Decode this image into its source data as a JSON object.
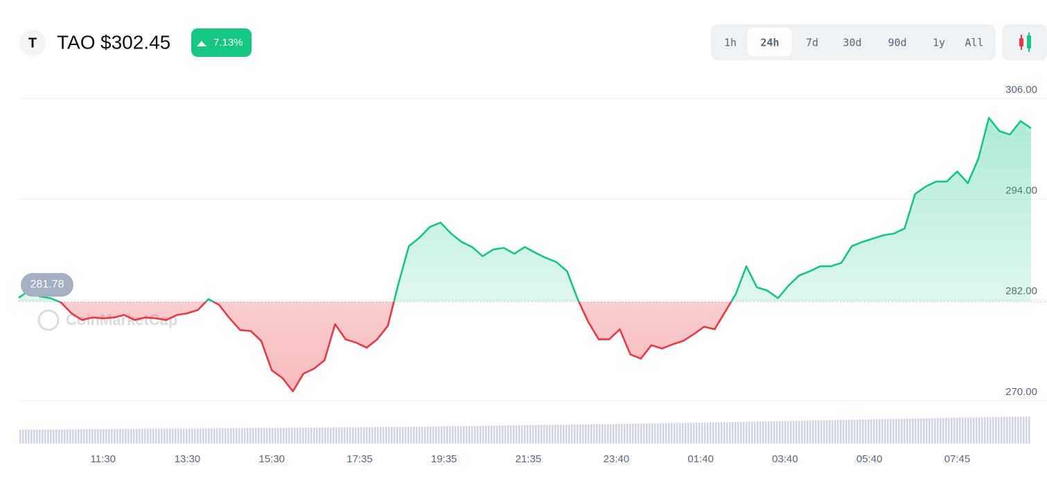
{
  "header": {
    "logo": "T",
    "symbol": "TAO",
    "price": "$302.45",
    "change": "7.13%"
  },
  "ranges": [
    "1h",
    "24h",
    "7d",
    "30d",
    "90d",
    "1y",
    "All"
  ],
  "selected_range": "24h",
  "chart_data": {
    "type": "line",
    "watermark": "CoinMarketCap",
    "x": [
      0,
      1,
      2,
      3,
      4,
      5,
      6,
      7,
      8,
      9,
      10,
      11,
      12,
      13,
      14,
      15,
      16,
      17,
      18,
      19,
      20,
      21,
      22,
      23,
      24,
      25,
      26,
      27,
      28,
      29,
      30,
      31,
      32,
      33,
      34,
      35,
      36,
      37,
      38,
      39,
      40,
      41,
      42,
      43,
      44,
      45,
      46,
      47,
      48,
      49,
      50,
      51,
      52,
      53,
      54,
      55,
      56,
      57,
      58,
      59,
      60,
      61,
      62,
      63,
      64,
      65,
      66,
      67,
      68,
      69,
      70,
      71,
      72,
      73,
      74,
      75,
      76,
      77,
      78,
      79,
      80,
      81,
      82,
      83,
      84,
      85,
      86,
      87,
      88,
      89,
      90,
      91,
      92,
      93,
      94,
      95,
      96
    ],
    "values": [
      282.25,
      283.1,
      282.4,
      282.2,
      281.7,
      280.4,
      279.6,
      279.9,
      279.8,
      279.9,
      280.2,
      279.6,
      279.9,
      279.8,
      279.6,
      280.2,
      280.4,
      280.8,
      282.1,
      281.4,
      279.8,
      278.4,
      278.3,
      277.1,
      273.6,
      272.7,
      271.1,
      273.2,
      273.8,
      274.8,
      279.1,
      277.3,
      276.9,
      276.3,
      277.3,
      278.9,
      283.9,
      288.4,
      289.4,
      290.7,
      291.2,
      289.9,
      288.9,
      288.3,
      287.2,
      288.0,
      288.2,
      287.5,
      288.3,
      287.6,
      287.0,
      286.5,
      285.4,
      282.1,
      279.4,
      277.3,
      277.3,
      278.5,
      275.5,
      275.0,
      276.6,
      276.2,
      276.7,
      277.1,
      277.9,
      278.8,
      278.5,
      280.6,
      282.7,
      286.0,
      283.5,
      283.1,
      282.2,
      283.7,
      284.9,
      285.4,
      286.0,
      286.0,
      286.4,
      288.4,
      288.9,
      289.3,
      289.7,
      289.9,
      290.5,
      294.6,
      295.5,
      296.1,
      296.1,
      297.3,
      295.9,
      298.8,
      303.7,
      302.1,
      301.7,
      303.3,
      302.45
    ],
    "baseline": {
      "value": 281.78,
      "label": "281.78"
    },
    "up_color": "#16c784",
    "down_color": "#ea3943",
    "xlim": [
      0,
      96
    ],
    "xticks": [
      {
        "value": 8,
        "label": "11:30"
      },
      {
        "value": 16,
        "label": "13:30"
      },
      {
        "value": 24,
        "label": "15:30"
      },
      {
        "value": 32.33,
        "label": "17:35"
      },
      {
        "value": 40.33,
        "label": "19:35"
      },
      {
        "value": 48.33,
        "label": "21:35"
      },
      {
        "value": 56.67,
        "label": "23:40"
      },
      {
        "value": 64.67,
        "label": "01:40"
      },
      {
        "value": 72.67,
        "label": "03:40"
      },
      {
        "value": 80.67,
        "label": "05:40"
      },
      {
        "value": 89,
        "label": "07:45"
      }
    ],
    "ylim": [
      270,
      306
    ],
    "yticks": [
      {
        "value": 270,
        "label": "270.00"
      },
      {
        "value": 282,
        "label": "282.00"
      },
      {
        "value": 294,
        "label": "294.00"
      },
      {
        "value": 306,
        "label": "306.00"
      }
    ],
    "grid": true
  }
}
